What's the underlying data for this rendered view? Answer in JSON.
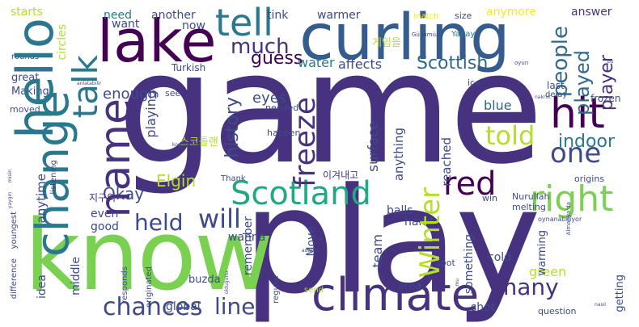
{
  "words": {
    "game": "game",
    "play": "play",
    "know": "know",
    "curling": "curling",
    "lake": "lake",
    "hello": "hello",
    "climate": "climate",
    "change": "change",
    "scotland": "Scotland",
    "name": "name",
    "hit": "hit",
    "tell": "tell",
    "right": "right",
    "red": "red",
    "freeze": "freeze",
    "winter": "Winter",
    "chances": "chances",
    "line": "line",
    "one": "one",
    "much": "much",
    "talk": "talk",
    "people": "people",
    "told": "told",
    "many": "many",
    "held": "held",
    "will": "will",
    "scottish": "Scottish",
    "guess": "guess",
    "played": "played",
    "player": "player",
    "indoor": "indoor",
    "history": "history",
    "okay": "Okay",
    "elgin": "Elgin",
    "starts": "starts",
    "need": "need",
    "another": "another",
    "tink": "tink",
    "warmer": "warmer",
    "anymore": "anymore",
    "answer": "answer",
    "want": "want",
    "now": "now",
    "water": "water",
    "affects": "affects",
    "circles": "circles",
    "enough": "enough",
    "eyes": "eyes",
    "blue": "blue",
    "surface": "surface",
    "reached": "reached",
    "anything": "anything",
    "playing": "playing",
    "anytime": "anytime",
    "even": "even",
    "good": "good",
    "wanna": "wanna",
    "remember": "remember",
    "team": "team",
    "balls": "balls",
    "hand": "hand",
    "cold": "cold",
    "global": "global",
    "shot": "shot",
    "area": "area",
    "green": "green",
    "warming": "warming",
    "something": "something",
    "middle": "middle",
    "idea": "idea",
    "move": "Move",
    "getting": "getting",
    "great": "great",
    "making": "Making",
    "turkish": "Turkish",
    "rounds": "rounds",
    "frozen": "frozen",
    "last": "last",
    "delay": "delay",
    "ice": "ice",
    "size": "size",
    "match": "match",
    "happen": "happen",
    "needed": "needed",
    "thank": "Thank",
    "buzda": "buzda",
    "nurullah": "Nurullah",
    "melting": "melting",
    "origins": "origins",
    "win": "win",
    "spot": "spot",
    "question": "question",
    "difference": "difference",
    "youngest": "youngest",
    "responds": "responds",
    "originated": "originated",
    "regular": "regular",
    "send": "send",
    "listening": "listening",
    "moved": "moved",
    "see": "see",
    "yapay": "Yapay",
    "gunumuz": "Günümüz",
    "oyun": "oyun",
    "cjk1": "게임을",
    "cjk2": "스코틀랜",
    "cjk3": "이겨내고",
    "cjk4": "지구의",
    "oynanabiliyor": "oynanabiliyor",
    "almanya": "Almanya'da",
    "kosullarina": "koşullarına",
    "oldugunu": "olduğunu",
    "nasil": "nasıl",
    "adapte": "adapte",
    "misin": "misin",
    "yaygin": "yaygın",
    "anlatabilir": "anlatabilir",
    "bu": "bu",
    "nakruc": "nakruc",
    "mu": "mu",
    "tiny1": "bu",
    "tiny2": "mu"
  },
  "colors": {
    "dark_purple": "#440154",
    "indigo": "#482878",
    "slate": "#3e4a89",
    "navy_blue": "#31688e",
    "teal": "#26828e",
    "sea": "#1f9e89",
    "green": "#35b779",
    "lime": "#6ece58",
    "yellow_green": "#b5de2b",
    "yellow": "#fde725",
    "background": "#ffffff"
  }
}
